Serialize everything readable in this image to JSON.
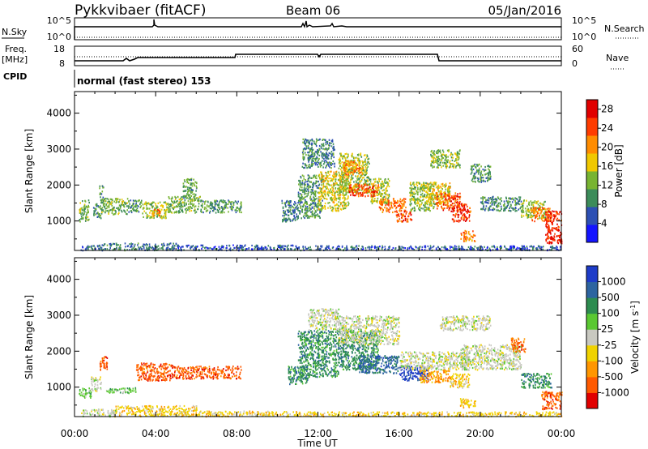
{
  "header": {
    "station": "Pykkvibaer (fitACF)",
    "beam": "Beam 06",
    "date": "05/Jan/2016"
  },
  "strips": {
    "nsky": {
      "left_label": "N.Sky",
      "top_tick": "10^5",
      "bottom_tick": "10^0"
    },
    "nsearch": {
      "right_label": "N.Search",
      "top_tick": "10^5",
      "bottom_tick": "10^0"
    },
    "freq": {
      "left_label_1": "Freq.",
      "left_label_2": "[MHz]",
      "top_tick": "18",
      "bottom_tick": "8"
    },
    "nave": {
      "right_label": "Nave",
      "top_tick": "60",
      "bottom_tick": "0"
    },
    "cpid": {
      "left_label": "CPID",
      "mode_text": "normal (fast stereo) 153"
    }
  },
  "chart_data": [
    {
      "name": "power",
      "type": "heatmap",
      "xlabel": "",
      "ylabel": "Slant Range [km]",
      "x_range_ut_hours": [
        0,
        24
      ],
      "ylim": [
        180,
        4600
      ],
      "y_ticks": [
        "1000",
        "2000",
        "3000",
        "4000"
      ],
      "colorbar": {
        "label": "Power [dB]",
        "ticks": [
          "4",
          "8",
          "12",
          "16",
          "20",
          "24",
          "28"
        ],
        "range": [
          0,
          30
        ],
        "colors": [
          "#1414ff",
          "#2d50b4",
          "#3c8c5a",
          "#78b432",
          "#f0c800",
          "#ff8c00",
          "#ff3c00",
          "#e10000"
        ]
      },
      "regions": [
        {
          "t": [
            0.3,
            1.3
          ],
          "r": [
            200,
            350
          ],
          "v": 6
        },
        {
          "t": [
            1.3,
            5.0
          ],
          "r": [
            200,
            400
          ],
          "v": 8
        },
        {
          "t": [
            5.0,
            11.0
          ],
          "r": [
            200,
            350
          ],
          "v": 6
        },
        {
          "t": [
            11.0,
            24.0
          ],
          "r": [
            200,
            330
          ],
          "v": 6
        },
        {
          "t": [
            0.2,
            0.7
          ],
          "r": [
            1000,
            1600
          ],
          "v": 12
        },
        {
          "t": [
            0.9,
            1.3
          ],
          "r": [
            1100,
            1500
          ],
          "v": 10
        },
        {
          "t": [
            1.2,
            1.4
          ],
          "r": [
            1500,
            2000
          ],
          "v": 10
        },
        {
          "t": [
            1.3,
            2.6
          ],
          "r": [
            1200,
            1650
          ],
          "v": 12
        },
        {
          "t": [
            2.6,
            3.3
          ],
          "r": [
            1250,
            1600
          ],
          "v": 10
        },
        {
          "t": [
            3.3,
            4.6
          ],
          "r": [
            1100,
            1550
          ],
          "v": 14
        },
        {
          "t": [
            3.8,
            4.2
          ],
          "r": [
            1150,
            1350
          ],
          "v": 22
        },
        {
          "t": [
            4.6,
            6.2
          ],
          "r": [
            1250,
            1700
          ],
          "v": 12
        },
        {
          "t": [
            5.3,
            6.0
          ],
          "r": [
            1650,
            2200
          ],
          "v": 11
        },
        {
          "t": [
            6.2,
            8.2
          ],
          "r": [
            1250,
            1600
          ],
          "v": 10
        },
        {
          "t": [
            10.2,
            11.0
          ],
          "r": [
            1000,
            1600
          ],
          "v": 8
        },
        {
          "t": [
            11.0,
            12.2
          ],
          "r": [
            1100,
            2300
          ],
          "v": 10
        },
        {
          "t": [
            11.2,
            12.8
          ],
          "r": [
            2500,
            3300
          ],
          "v": 9
        },
        {
          "t": [
            12.0,
            13.5
          ],
          "r": [
            1300,
            2400
          ],
          "v": 16
        },
        {
          "t": [
            13.0,
            14.5
          ],
          "r": [
            1800,
            2900
          ],
          "v": 14
        },
        {
          "t": [
            13.2,
            14.2
          ],
          "r": [
            2300,
            2700
          ],
          "v": 20
        },
        {
          "t": [
            14.5,
            15.5
          ],
          "r": [
            1500,
            2200
          ],
          "v": 14
        },
        {
          "t": [
            13.5,
            15.0
          ],
          "r": [
            1700,
            2050
          ],
          "v": 24
        },
        {
          "t": [
            15.0,
            16.3
          ],
          "r": [
            1250,
            1650
          ],
          "v": 22
        },
        {
          "t": [
            15.8,
            16.6
          ],
          "r": [
            1000,
            1300
          ],
          "v": 25
        },
        {
          "t": [
            16.5,
            17.8
          ],
          "r": [
            1300,
            2100
          ],
          "v": 14
        },
        {
          "t": [
            17.3,
            18.5
          ],
          "r": [
            1500,
            2100
          ],
          "v": 16
        },
        {
          "t": [
            17.8,
            19.0
          ],
          "r": [
            1300,
            1800
          ],
          "v": 24
        },
        {
          "t": [
            18.5,
            19.5
          ],
          "r": [
            1000,
            1500
          ],
          "v": 26
        },
        {
          "t": [
            19.0,
            19.8
          ],
          "r": [
            450,
            750
          ],
          "v": 22
        },
        {
          "t": [
            17.5,
            19.0
          ],
          "r": [
            2500,
            3000
          ],
          "v": 13
        },
        {
          "t": [
            19.5,
            20.5
          ],
          "r": [
            2100,
            2600
          ],
          "v": 10
        },
        {
          "t": [
            20.0,
            22.0
          ],
          "r": [
            1300,
            1700
          ],
          "v": 9
        },
        {
          "t": [
            22.0,
            23.2
          ],
          "r": [
            1100,
            1600
          ],
          "v": 14
        },
        {
          "t": [
            22.5,
            23.5
          ],
          "r": [
            1000,
            1400
          ],
          "v": 22
        },
        {
          "t": [
            23.2,
            24.0
          ],
          "r": [
            400,
            1300
          ],
          "v": 26
        }
      ]
    },
    {
      "name": "velocity",
      "type": "heatmap",
      "xlabel": "Time UT",
      "ylabel": "Slant Range [km]",
      "x_range_ut_hours": [
        0,
        24
      ],
      "x_ticks": [
        "00:00",
        "04:00",
        "08:00",
        "12:00",
        "16:00",
        "20:00",
        "00:00"
      ],
      "ylim": [
        180,
        4600
      ],
      "y_ticks": [
        "1000",
        "2000",
        "3000",
        "4000"
      ],
      "colorbar": {
        "label": "Velocity [m s-1]",
        "ticks": [
          "1000",
          "500",
          "100",
          "25",
          "-25",
          "-100",
          "-500",
          "-1000"
        ],
        "colors": [
          "#1e3cc8",
          "#2d64a0",
          "#2d8c50",
          "#5ac832",
          "#c8c8c0",
          "#f0d200",
          "#ff9600",
          "#ff5a00",
          "#e10000"
        ]
      },
      "regions": [
        {
          "t": [
            0.3,
            2.0
          ],
          "r": [
            200,
            400
          ],
          "v": 4
        },
        {
          "t": [
            2.0,
            6.0
          ],
          "r": [
            200,
            500
          ],
          "v": 5
        },
        {
          "t": [
            6.0,
            11.0
          ],
          "r": [
            200,
            350
          ],
          "v": 5
        },
        {
          "t": [
            11.0,
            24.0
          ],
          "r": [
            200,
            330
          ],
          "v": 5
        },
        {
          "t": [
            0.2,
            0.8
          ],
          "r": [
            700,
            1000
          ],
          "v": 3
        },
        {
          "t": [
            0.8,
            1.3
          ],
          "r": [
            900,
            1300
          ],
          "v": 4
        },
        {
          "t": [
            1.2,
            1.6
          ],
          "r": [
            1500,
            1900
          ],
          "v": 7
        },
        {
          "t": [
            1.5,
            3.0
          ],
          "r": [
            850,
            1000
          ],
          "v": 3
        },
        {
          "t": [
            3.0,
            4.8
          ],
          "r": [
            1200,
            1700
          ],
          "v": 7
        },
        {
          "t": [
            4.8,
            8.2
          ],
          "r": [
            1250,
            1600
          ],
          "v": 7
        },
        {
          "t": [
            10.5,
            11.5
          ],
          "r": [
            1100,
            1600
          ],
          "v": 2
        },
        {
          "t": [
            11.0,
            13.0
          ],
          "r": [
            1300,
            2600
          ],
          "v": 2
        },
        {
          "t": [
            11.5,
            13.0
          ],
          "r": [
            2600,
            3200
          ],
          "v": 4
        },
        {
          "t": [
            13.0,
            15.0
          ],
          "r": [
            1500,
            2600
          ],
          "v": 2
        },
        {
          "t": [
            14.0,
            16.0
          ],
          "r": [
            1400,
            1900
          ],
          "v": 1
        },
        {
          "t": [
            13.0,
            16.0
          ],
          "r": [
            2200,
            3000
          ],
          "v": 4
        },
        {
          "t": [
            16.0,
            17.5
          ],
          "r": [
            1200,
            1600
          ],
          "v": 0
        },
        {
          "t": [
            16.0,
            19.5
          ],
          "r": [
            1500,
            2000
          ],
          "v": 4
        },
        {
          "t": [
            17.0,
            18.5
          ],
          "r": [
            1150,
            1500
          ],
          "v": 6
        },
        {
          "t": [
            18.5,
            19.5
          ],
          "r": [
            1000,
            1400
          ],
          "v": 5
        },
        {
          "t": [
            19.0,
            19.8
          ],
          "r": [
            450,
            700
          ],
          "v": 5
        },
        {
          "t": [
            19.0,
            22.0
          ],
          "r": [
            1500,
            2200
          ],
          "v": 4
        },
        {
          "t": [
            18.0,
            20.5
          ],
          "r": [
            2600,
            3000
          ],
          "v": 4
        },
        {
          "t": [
            21.5,
            22.2
          ],
          "r": [
            2000,
            2400
          ],
          "v": 7
        },
        {
          "t": [
            22.0,
            23.5
          ],
          "r": [
            1000,
            1400
          ],
          "v": 2
        },
        {
          "t": [
            23.0,
            24.0
          ],
          "r": [
            400,
            900
          ],
          "v": 7
        }
      ]
    }
  ]
}
